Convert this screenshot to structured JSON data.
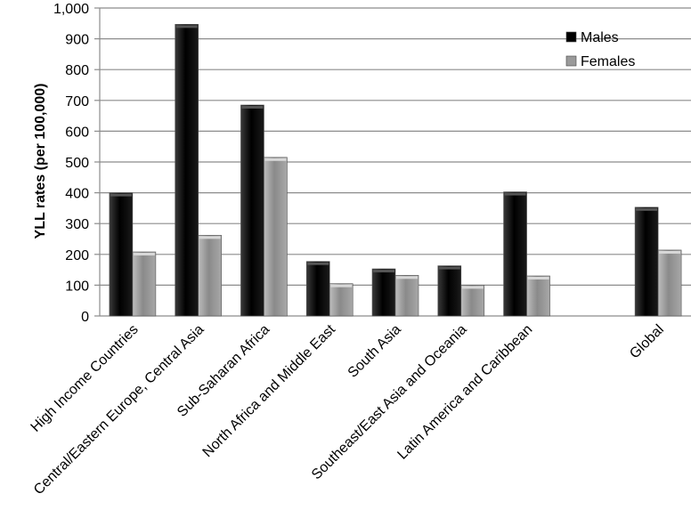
{
  "chart_data": {
    "type": "bar",
    "title": "",
    "xlabel": "",
    "ylabel": "YLL rates (per 100,000)",
    "ylim": [
      0,
      1000
    ],
    "yticks": [
      0,
      100,
      200,
      300,
      400,
      500,
      600,
      700,
      800,
      900,
      1000
    ],
    "ytick_labels": [
      "0",
      "100",
      "200",
      "300",
      "400",
      "500",
      "600",
      "700",
      "800",
      "900",
      "1,000"
    ],
    "grid": true,
    "legend_position": "top-right",
    "categories": [
      "High Income Countries",
      "Central/Eastern Europe, Central Asia",
      "Sub-Saharan Africa",
      "North Africa and Middle East",
      "South Asia",
      "Southeast/East Asia and Oceania",
      "Latin America and Caribbean",
      "",
      "Global"
    ],
    "series": [
      {
        "name": "Males",
        "color": "#111111",
        "values": [
          400,
          947,
          685,
          177,
          153,
          163,
          403,
          null,
          353
        ]
      },
      {
        "name": "Females",
        "color": "#9a9a9a",
        "values": [
          208,
          262,
          515,
          105,
          132,
          100,
          130,
          null,
          214
        ]
      }
    ]
  }
}
